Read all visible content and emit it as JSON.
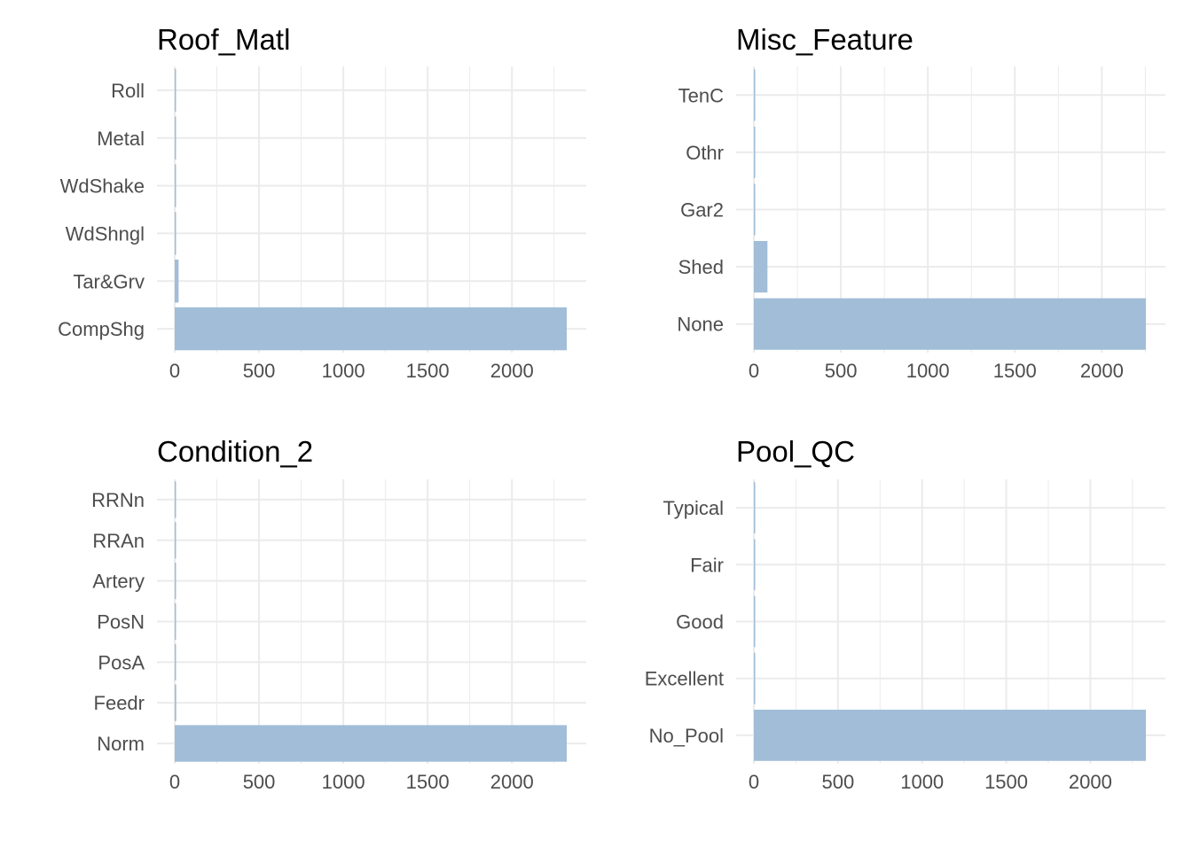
{
  "colors": {
    "bar": "#a1bdd8",
    "grid": "#ebebeb",
    "text": "#4d4d4d",
    "title": "#000000"
  },
  "chart_data": [
    {
      "type": "bar",
      "orientation": "horizontal",
      "title": "Roof_Matl",
      "categories": [
        "CompShg",
        "Tar&Grv",
        "WdShngl",
        "WdShake",
        "Metal",
        "Roll"
      ],
      "values": [
        2325,
        23,
        7,
        5,
        1,
        1
      ],
      "xlim": [
        0,
        2325
      ],
      "xticks": [
        0,
        500,
        1000,
        1500,
        2000
      ],
      "grid": true
    },
    {
      "type": "bar",
      "orientation": "horizontal",
      "title": "Misc_Feature",
      "categories": [
        "None",
        "Shed",
        "Gar2",
        "Othr",
        "TenC"
      ],
      "values": [
        2253,
        78,
        5,
        4,
        1
      ],
      "xlim": [
        0,
        2253
      ],
      "xticks": [
        0,
        500,
        1000,
        1500,
        2000
      ],
      "grid": true
    },
    {
      "type": "bar",
      "orientation": "horizontal",
      "title": "Condition_2",
      "categories": [
        "Norm",
        "Feedr",
        "PosA",
        "PosN",
        "Artery",
        "RRAn",
        "RRNn"
      ],
      "values": [
        2325,
        9,
        3,
        3,
        4,
        1,
        1
      ],
      "xlim": [
        0,
        2325
      ],
      "xticks": [
        0,
        500,
        1000,
        1500,
        2000
      ],
      "grid": true
    },
    {
      "type": "bar",
      "orientation": "horizontal",
      "title": "Pool_QC",
      "categories": [
        "No_Pool",
        "Excellent",
        "Good",
        "Fair",
        "Typical"
      ],
      "values": [
        2330,
        2,
        2,
        1,
        1
      ],
      "xlim": [
        0,
        2330
      ],
      "xticks": [
        0,
        500,
        1000,
        1500,
        2000
      ],
      "grid": true
    }
  ]
}
